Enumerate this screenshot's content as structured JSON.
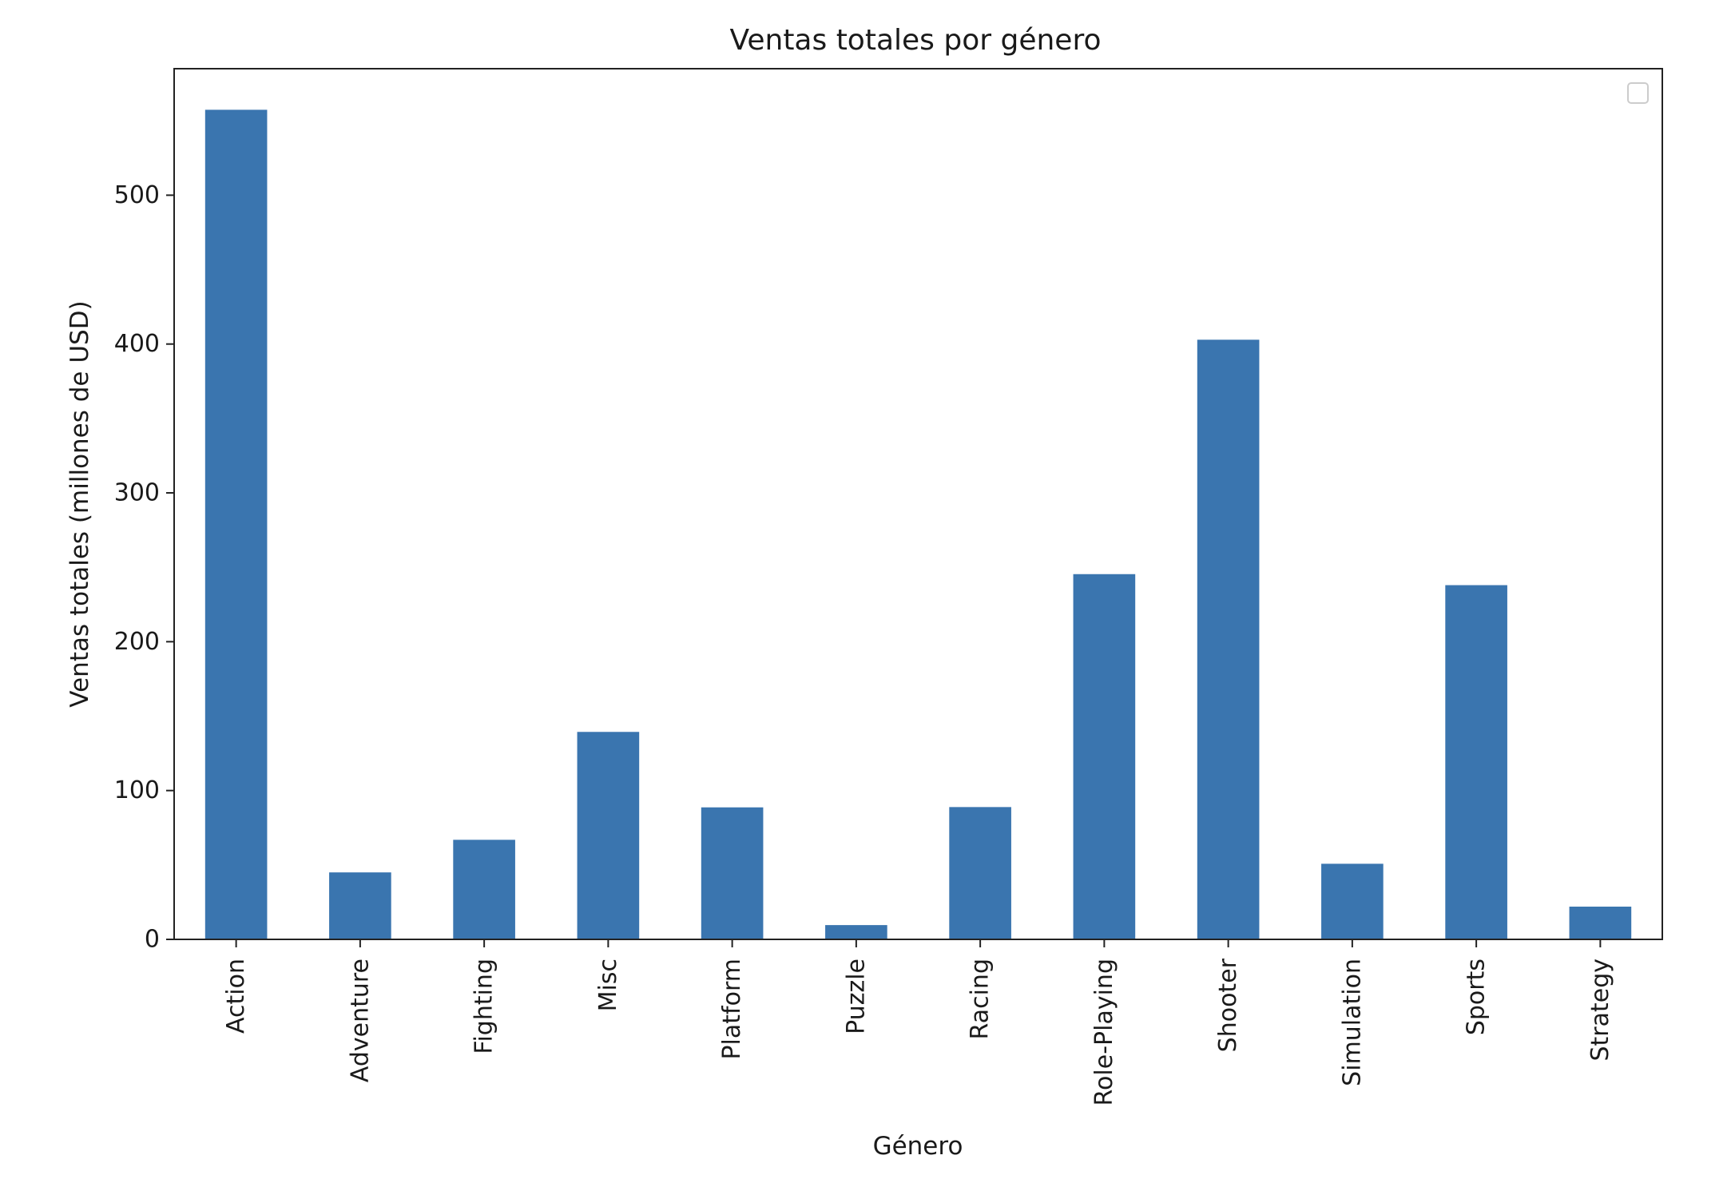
{
  "chart_data": {
    "type": "bar",
    "title": "Ventas totales por género",
    "xlabel": "Género",
    "ylabel": "Ventas totales (millones de USD)",
    "categories": [
      "Action",
      "Adventure",
      "Fighting",
      "Misc",
      "Platform",
      "Puzzle",
      "Racing",
      "Role-Playing",
      "Shooter",
      "Simulation",
      "Sports",
      "Strategy"
    ],
    "values": [
      557.4,
      45.0,
      66.9,
      139.4,
      88.7,
      9.6,
      88.9,
      245.4,
      402.9,
      50.8,
      238.0,
      22.0
    ],
    "ylim": [
      0,
      585
    ],
    "yticks": [
      0,
      100,
      200,
      300,
      400,
      500
    ],
    "ytick_labels": [
      "0",
      "100",
      "200",
      "300",
      "400",
      "500"
    ],
    "grid": false,
    "legend": {
      "placement": "top-right",
      "entries": []
    },
    "colors": {
      "bar": "#3a75af",
      "axes": "#222222",
      "legend_border": "#cccccc"
    }
  }
}
